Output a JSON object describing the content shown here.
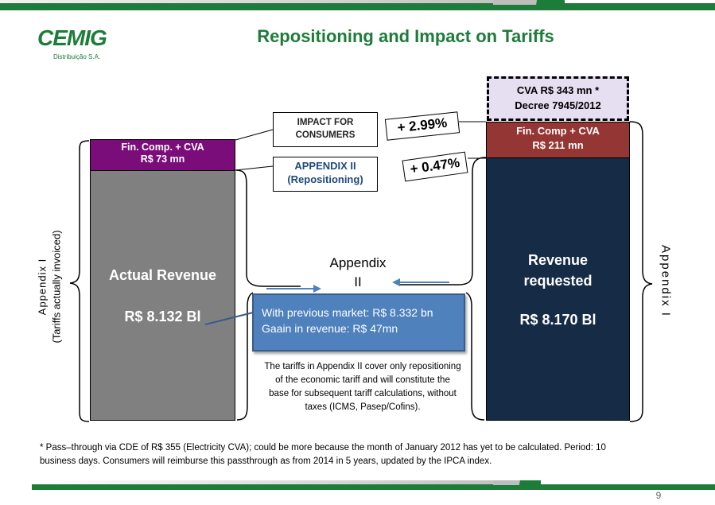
{
  "slide": {
    "title": "Repositioning and Impact on Tariffs",
    "page_number": "9"
  },
  "logo": {
    "name": "CEMIG",
    "subtitle": "Distribuição S.A."
  },
  "left_bar": {
    "cap_line1": "Fin. Comp. + CVA",
    "cap_line2": "R$ 73 mn",
    "label": "Actual Revenue",
    "value": "R$ 8.132 Bl"
  },
  "right_bar": {
    "cap_line1": "Fin. Comp + CVA",
    "cap_line2": "R$ 211 mn",
    "label_line1": "Revenue",
    "label_line2": "requested",
    "value": "R$ 8.170 Bl"
  },
  "cva_note": {
    "line1": "CVA R$ 343 mn *",
    "line2": "Decree 7945/2012"
  },
  "impact_box": {
    "line1": "IMPACT FOR",
    "line2": "CONSUMERS",
    "pct": "+ 2.99%"
  },
  "appendix_box": {
    "line1": "APPENDIX II",
    "line2": "(Repositioning)",
    "pct": "+ 0.47%"
  },
  "appendix_mid": {
    "line1": "Appendix",
    "line2": "II"
  },
  "blue_box": {
    "line1": "With previous market: R$ 8.332 bn",
    "line2": "Gaain in revenue: R$ 47mn"
  },
  "center_note": {
    "line1": "The tariffs in Appendix II cover only repositioning",
    "line2": "of the economic tariff and will constitute the",
    "line3": "base for subsequent tariff calculations, without",
    "line4": "taxes (ICMS, Pasep/Cofins)."
  },
  "left_label": {
    "line1": "Appendix  I",
    "line2": "(Tariffs actually invoiced)"
  },
  "right_label": "Appendix I",
  "footnote": {
    "line1": "* Pass–through via CDE of R$ 355 (Electricity CVA); could be more  because the month  of January 2012  has yet to be calculated. Period:  10",
    "line2": "business days.    Consumers will reimburse this passthrough as from 2014 in 5 years, updated by the IPCA index."
  },
  "colors": {
    "brand_green": "#1e7c3a",
    "bar_dark": "#152b46",
    "bar_gray": "#808080",
    "cap_purple": "#7b0d7b",
    "cap_red": "#943634",
    "blue_box": "#4f81bd",
    "cva_note_bg": "#e6dff1"
  }
}
